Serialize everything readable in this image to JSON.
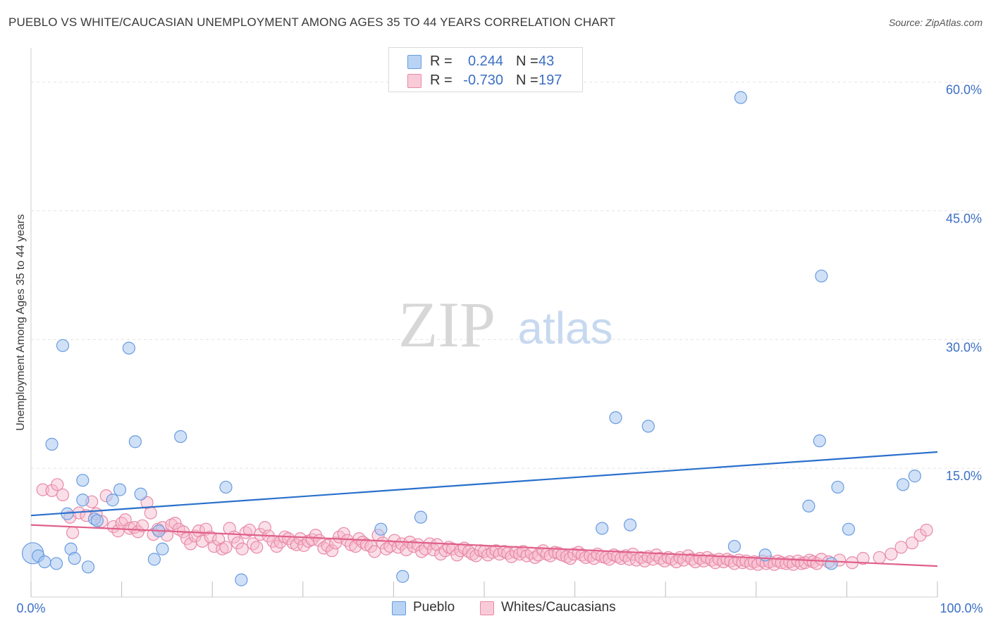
{
  "title": "PUEBLO VS WHITE/CAUCASIAN UNEMPLOYMENT AMONG AGES 35 TO 44 YEARS CORRELATION CHART",
  "source": "Source: ZipAtlas.com",
  "watermark": {
    "zip": "ZIP",
    "atlas": "atlas"
  },
  "colors": {
    "pueblo_fill": "#a9c8f0",
    "pueblo_stroke": "#6a9be0",
    "pueblo_line": "#2a70cc",
    "white_fill": "#f6b9cc",
    "white_stroke": "#e88aa8",
    "white_line": "#e0608a",
    "axis_text": "#3b6fc4",
    "grid": "#e2e2e2"
  },
  "legend_top": {
    "rows": [
      {
        "r_label": "R =",
        "r_value": "0.244",
        "n_label": "N =",
        "n_value": "43"
      },
      {
        "r_label": "R =",
        "r_value": "-0.730",
        "n_label": "N =",
        "n_value": "197"
      }
    ]
  },
  "legend_bottom": {
    "pueblo": "Pueblo",
    "white": "Whites/Caucasians"
  },
  "chart_data": {
    "type": "scatter",
    "title": "PUEBLO VS WHITE/CAUCASIAN UNEMPLOYMENT AMONG AGES 35 TO 44 YEARS CORRELATION CHART",
    "xlabel": "",
    "ylabel": "Unemployment Among Ages 35 to 44 years",
    "xlim": [
      0,
      100
    ],
    "ylim": [
      0,
      63
    ],
    "x_tick_labels": [
      "0.0%",
      "100.0%"
    ],
    "y_ticks": [
      15,
      30,
      45,
      60
    ],
    "y_tick_labels": [
      "15.0%",
      "30.0%",
      "45.0%",
      "60.0%"
    ],
    "grid": true,
    "series": [
      {
        "name": "Pueblo",
        "r": 0.244,
        "n": 43,
        "trend": {
          "x": [
            0,
            100
          ],
          "y": [
            9.5,
            16.9
          ]
        },
        "points": [
          [
            0.2,
            5.1
          ],
          [
            0.8,
            4.8
          ],
          [
            1.5,
            4.1
          ],
          [
            2.3,
            17.8
          ],
          [
            2.8,
            3.9
          ],
          [
            3.5,
            29.3
          ],
          [
            4.4,
            5.6
          ],
          [
            4.8,
            4.5
          ],
          [
            5.7,
            11.3
          ],
          [
            5.7,
            13.6
          ],
          [
            6.3,
            3.5
          ],
          [
            7.0,
            9.1
          ],
          [
            9.0,
            11.3
          ],
          [
            9.8,
            12.5
          ],
          [
            10.8,
            29.0
          ],
          [
            11.5,
            18.1
          ],
          [
            12.1,
            12.0
          ],
          [
            13.6,
            4.4
          ],
          [
            14.1,
            7.7
          ],
          [
            14.5,
            5.6
          ],
          [
            16.5,
            18.7
          ],
          [
            21.5,
            12.8
          ],
          [
            23.2,
            2.0
          ],
          [
            38.6,
            7.9
          ],
          [
            41.0,
            2.4
          ],
          [
            43.0,
            9.3
          ],
          [
            63.0,
            8.0
          ],
          [
            64.5,
            20.9
          ],
          [
            66.1,
            8.4
          ],
          [
            68.1,
            19.9
          ],
          [
            77.6,
            5.9
          ],
          [
            78.3,
            58.2
          ],
          [
            81.0,
            4.9
          ],
          [
            85.8,
            10.6
          ],
          [
            87.0,
            18.2
          ],
          [
            87.2,
            37.4
          ],
          [
            88.3,
            3.9
          ],
          [
            89.0,
            12.8
          ],
          [
            90.2,
            7.9
          ],
          [
            96.2,
            13.1
          ],
          [
            97.5,
            14.1
          ],
          [
            4.0,
            9.7
          ],
          [
            7.3,
            8.9
          ]
        ]
      },
      {
        "name": "Whites/Caucasians",
        "r": -0.73,
        "n": 197,
        "trend": {
          "x": [
            0,
            100
          ],
          "y": [
            8.4,
            3.6
          ]
        },
        "points": [
          [
            1.3,
            12.5
          ],
          [
            2.3,
            12.4
          ],
          [
            2.9,
            13.1
          ],
          [
            3.5,
            11.9
          ],
          [
            4.3,
            9.3
          ],
          [
            4.6,
            7.5
          ],
          [
            5.3,
            9.8
          ],
          [
            6.1,
            9.5
          ],
          [
            6.7,
            11.1
          ],
          [
            7.2,
            9.7
          ],
          [
            7.8,
            8.8
          ],
          [
            8.3,
            11.8
          ],
          [
            9.1,
            8.2
          ],
          [
            9.6,
            7.7
          ],
          [
            10.0,
            8.6
          ],
          [
            10.4,
            9.0
          ],
          [
            10.9,
            8.0
          ],
          [
            11.4,
            8.1
          ],
          [
            11.8,
            7.6
          ],
          [
            12.3,
            8.3
          ],
          [
            12.8,
            11.0
          ],
          [
            13.2,
            9.8
          ],
          [
            13.5,
            7.3
          ],
          [
            14.0,
            7.9
          ],
          [
            14.5,
            8.1
          ],
          [
            15.0,
            7.2
          ],
          [
            15.5,
            8.4
          ],
          [
            15.9,
            8.6
          ],
          [
            16.3,
            7.9
          ],
          [
            16.8,
            7.6
          ],
          [
            17.2,
            6.8
          ],
          [
            17.6,
            6.2
          ],
          [
            18.1,
            7.1
          ],
          [
            18.5,
            7.7
          ],
          [
            18.9,
            6.5
          ],
          [
            19.3,
            7.9
          ],
          [
            19.8,
            7.0
          ],
          [
            20.2,
            5.9
          ],
          [
            20.7,
            6.7
          ],
          [
            21.1,
            5.6
          ],
          [
            21.5,
            5.8
          ],
          [
            21.9,
            8.0
          ],
          [
            22.4,
            7.0
          ],
          [
            22.8,
            6.3
          ],
          [
            23.3,
            5.6
          ],
          [
            23.7,
            7.5
          ],
          [
            24.1,
            7.8
          ],
          [
            24.5,
            6.2
          ],
          [
            24.9,
            5.8
          ],
          [
            25.3,
            7.3
          ],
          [
            25.8,
            8.1
          ],
          [
            26.2,
            7.1
          ],
          [
            26.7,
            6.5
          ],
          [
            27.1,
            5.9
          ],
          [
            27.5,
            6.4
          ],
          [
            28.0,
            7.0
          ],
          [
            28.4,
            6.8
          ],
          [
            28.9,
            6.3
          ],
          [
            29.3,
            6.1
          ],
          [
            29.7,
            6.8
          ],
          [
            30.1,
            6.0
          ],
          [
            30.6,
            6.5
          ],
          [
            31.0,
            6.7
          ],
          [
            31.4,
            7.2
          ],
          [
            31.8,
            6.6
          ],
          [
            32.3,
            5.7
          ],
          [
            32.7,
            6.0
          ],
          [
            33.2,
            5.4
          ],
          [
            33.6,
            6.3
          ],
          [
            34.0,
            7.0
          ],
          [
            34.5,
            7.4
          ],
          [
            34.9,
            6.6
          ],
          [
            35.3,
            6.1
          ],
          [
            35.8,
            5.9
          ],
          [
            36.2,
            6.8
          ],
          [
            36.6,
            6.4
          ],
          [
            37.0,
            6.1
          ],
          [
            37.5,
            5.9
          ],
          [
            37.9,
            5.3
          ],
          [
            38.3,
            7.2
          ],
          [
            38.8,
            6.3
          ],
          [
            39.2,
            5.6
          ],
          [
            39.6,
            5.9
          ],
          [
            40.1,
            6.6
          ],
          [
            40.5,
            5.8
          ],
          [
            40.9,
            6.2
          ],
          [
            41.4,
            5.5
          ],
          [
            41.8,
            6.4
          ],
          [
            42.2,
            5.9
          ],
          [
            42.7,
            6.1
          ],
          [
            43.1,
            5.3
          ],
          [
            43.5,
            5.6
          ],
          [
            44.0,
            6.2
          ],
          [
            44.4,
            5.5
          ],
          [
            44.8,
            6.1
          ],
          [
            45.2,
            5.0
          ],
          [
            45.7,
            5.4
          ],
          [
            46.1,
            5.8
          ],
          [
            46.5,
            5.6
          ],
          [
            47.0,
            4.9
          ],
          [
            47.4,
            5.4
          ],
          [
            47.8,
            5.7
          ],
          [
            48.3,
            5.3
          ],
          [
            48.7,
            5.0
          ],
          [
            49.1,
            4.8
          ],
          [
            49.6,
            5.4
          ],
          [
            50.0,
            5.3
          ],
          [
            50.4,
            4.9
          ],
          [
            50.9,
            5.2
          ],
          [
            51.3,
            5.4
          ],
          [
            51.7,
            5.0
          ],
          [
            52.2,
            5.3
          ],
          [
            52.6,
            5.1
          ],
          [
            53.0,
            4.7
          ],
          [
            53.5,
            5.2
          ],
          [
            53.9,
            5.0
          ],
          [
            54.3,
            5.3
          ],
          [
            54.7,
            4.8
          ],
          [
            55.2,
            5.1
          ],
          [
            55.6,
            4.6
          ],
          [
            56.0,
            4.9
          ],
          [
            56.5,
            5.4
          ],
          [
            56.9,
            5.0
          ],
          [
            57.3,
            4.8
          ],
          [
            57.8,
            5.2
          ],
          [
            58.2,
            5.1
          ],
          [
            58.6,
            4.9
          ],
          [
            59.1,
            4.7
          ],
          [
            59.5,
            4.5
          ],
          [
            59.9,
            5.0
          ],
          [
            60.4,
            5.2
          ],
          [
            60.8,
            4.9
          ],
          [
            61.2,
            4.6
          ],
          [
            61.7,
            4.8
          ],
          [
            62.1,
            4.5
          ],
          [
            62.5,
            5.0
          ],
          [
            63.0,
            4.7
          ],
          [
            63.4,
            4.6
          ],
          [
            63.8,
            4.4
          ],
          [
            64.3,
            4.9
          ],
          [
            64.7,
            4.7
          ],
          [
            65.1,
            4.5
          ],
          [
            65.6,
            4.8
          ],
          [
            66.0,
            4.4
          ],
          [
            66.4,
            5.0
          ],
          [
            66.8,
            4.3
          ],
          [
            67.3,
            4.6
          ],
          [
            67.7,
            4.2
          ],
          [
            68.1,
            4.7
          ],
          [
            68.6,
            4.4
          ],
          [
            69.0,
            4.9
          ],
          [
            69.4,
            4.5
          ],
          [
            69.9,
            4.2
          ],
          [
            70.3,
            4.6
          ],
          [
            70.7,
            4.4
          ],
          [
            71.2,
            4.1
          ],
          [
            71.6,
            4.6
          ],
          [
            72.0,
            4.3
          ],
          [
            72.5,
            4.8
          ],
          [
            72.9,
            4.4
          ],
          [
            73.3,
            4.1
          ],
          [
            73.8,
            4.5
          ],
          [
            74.2,
            4.2
          ],
          [
            74.6,
            4.6
          ],
          [
            75.1,
            4.3
          ],
          [
            75.5,
            4.0
          ],
          [
            75.9,
            4.4
          ],
          [
            76.4,
            4.1
          ],
          [
            76.8,
            4.4
          ],
          [
            77.2,
            4.2
          ],
          [
            77.6,
            3.9
          ],
          [
            78.1,
            4.3
          ],
          [
            78.5,
            4.0
          ],
          [
            78.9,
            4.2
          ],
          [
            79.4,
            3.9
          ],
          [
            79.8,
            4.1
          ],
          [
            80.2,
            3.8
          ],
          [
            80.7,
            4.2
          ],
          [
            81.1,
            3.9
          ],
          [
            81.5,
            4.1
          ],
          [
            82.0,
            3.8
          ],
          [
            82.4,
            4.2
          ],
          [
            82.8,
            4.0
          ],
          [
            83.3,
            3.9
          ],
          [
            83.7,
            4.1
          ],
          [
            84.1,
            3.8
          ],
          [
            84.6,
            4.2
          ],
          [
            85.0,
            3.9
          ],
          [
            85.4,
            4.0
          ],
          [
            85.9,
            4.3
          ],
          [
            86.3,
            4.1
          ],
          [
            86.7,
            3.9
          ],
          [
            87.2,
            4.4
          ],
          [
            88.0,
            4.1
          ],
          [
            89.2,
            4.3
          ],
          [
            90.6,
            4.0
          ],
          [
            91.8,
            4.5
          ],
          [
            93.6,
            4.6
          ],
          [
            94.9,
            5.0
          ],
          [
            96.0,
            5.8
          ],
          [
            97.2,
            6.3
          ],
          [
            98.1,
            7.2
          ],
          [
            98.8,
            7.8
          ]
        ]
      }
    ]
  }
}
